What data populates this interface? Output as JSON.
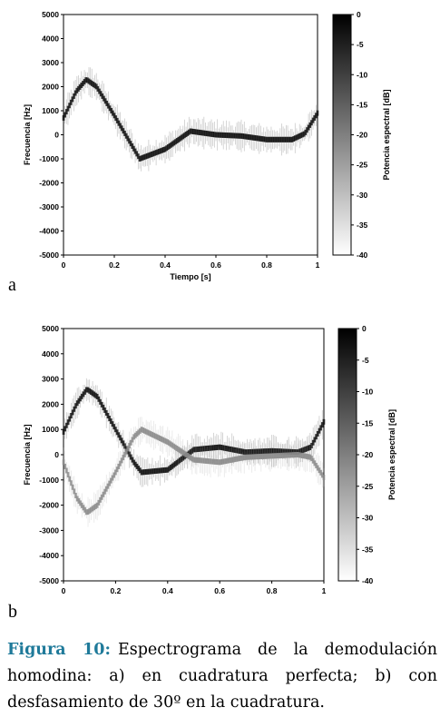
{
  "panels": [
    {
      "letter": "a"
    },
    {
      "letter": "b"
    }
  ],
  "caption": {
    "label": "Figura 10:",
    "text": "Espectrograma de la demodulación homodina: a) en cuadratura perfecta; b) con desfasamiento de 30º en la cuadratura."
  },
  "colors": {
    "background": "#ffffff",
    "caption_label": "#1f7a9a",
    "colormap": [
      "#ffffff",
      "#000000"
    ]
  },
  "chart_data": [
    {
      "type": "heatmap",
      "xlabel": "Tiempo  [s]",
      "ylabel": "Frecuencia  [Hz]",
      "xlim": [
        0,
        1
      ],
      "ylim": [
        -5000,
        5000
      ],
      "xticks": [
        "0",
        "0.2",
        "0.4",
        "0.6",
        "0.8",
        "1"
      ],
      "yticks": [
        "5000",
        "4000",
        "3000",
        "2000",
        "1000",
        "0",
        "-1000",
        "-2000",
        "-3000",
        "-4000",
        "-5000"
      ],
      "colorbar": {
        "label": "Potencia espectral  [dB]",
        "range": [
          -40,
          0
        ],
        "ticks": [
          "0",
          "-5",
          "-10",
          "-15",
          "-20",
          "-25",
          "-30",
          "-35",
          "-40"
        ]
      },
      "series": [
        {
          "power_db": -3,
          "x": [
            0,
            0.05,
            0.09,
            0.13,
            0.2,
            0.3,
            0.4,
            0.5,
            0.6,
            0.7,
            0.8,
            0.9,
            0.95,
            1.0
          ],
          "y": [
            700,
            1800,
            2300,
            2000,
            800,
            -1000,
            -600,
            150,
            0,
            -50,
            -200,
            -200,
            50,
            900
          ]
        }
      ]
    },
    {
      "type": "heatmap",
      "xlabel": "Tiempo  [s]",
      "ylabel": "Frecuencia  [Hz]",
      "xlim": [
        0,
        1
      ],
      "ylim": [
        -5000,
        5000
      ],
      "xticks": [
        "0",
        "0.2",
        "0.4",
        "0.6",
        "0.8",
        "1"
      ],
      "yticks": [
        "5000",
        "4000",
        "3000",
        "2000",
        "1000",
        "0",
        "-1000",
        "-2000",
        "-3000",
        "-4000",
        "-5000"
      ],
      "colorbar": {
        "label": "Potencia espectral  [dB]",
        "range": [
          -40,
          0
        ],
        "ticks": [
          "0",
          "-5",
          "-10",
          "-15",
          "-20",
          "-25",
          "-30",
          "-35",
          "-40"
        ]
      },
      "series": [
        {
          "power_db": -3,
          "x": [
            0,
            0.05,
            0.09,
            0.13,
            0.2,
            0.27,
            0.3,
            0.4,
            0.5,
            0.6,
            0.7,
            0.8,
            0.9,
            0.95,
            1.0
          ],
          "y": [
            900,
            2000,
            2600,
            2300,
            1000,
            -300,
            -700,
            -600,
            200,
            300,
            100,
            150,
            100,
            300,
            1300
          ]
        },
        {
          "power_db": -22,
          "x": [
            0,
            0.05,
            0.09,
            0.13,
            0.2,
            0.27,
            0.3,
            0.4,
            0.5,
            0.6,
            0.7,
            0.8,
            0.9,
            0.95,
            1.0
          ],
          "y": [
            -300,
            -1700,
            -2300,
            -2000,
            -700,
            700,
            1000,
            500,
            -200,
            -300,
            -100,
            -50,
            0,
            -100,
            -900
          ]
        }
      ]
    }
  ]
}
